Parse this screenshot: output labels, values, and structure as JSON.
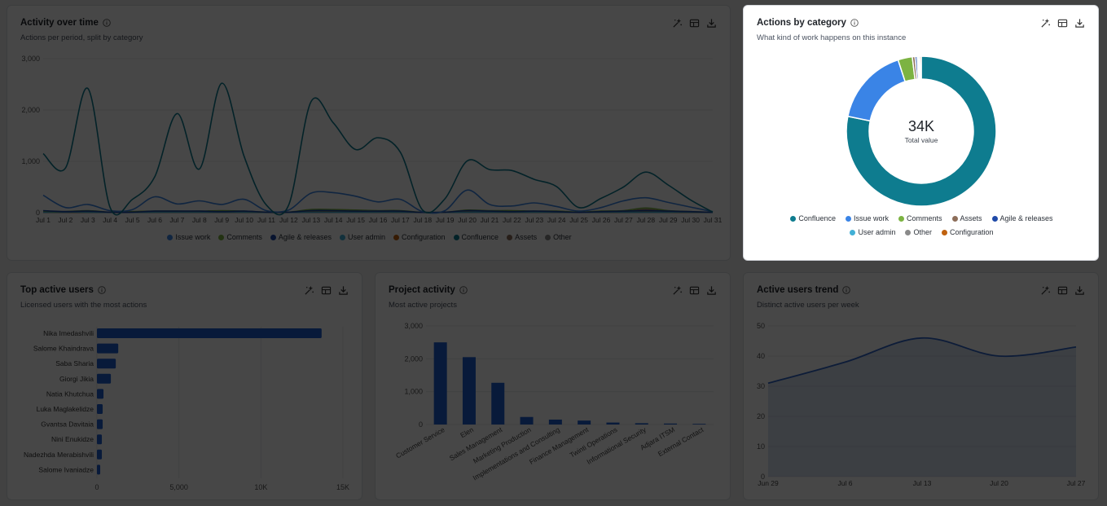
{
  "colors": {
    "confluence": "#0e7c8f",
    "issue_work": "#3a84e6",
    "comments": "#7cb342",
    "assets": "#8d6e5a",
    "agile": "#1f4aa8",
    "user_admin": "#42b0d6",
    "other": "#8a8a8a",
    "configuration": "#c0620f",
    "bar": "#1f5fd1"
  },
  "activity": {
    "title": "Activity over time",
    "subtitle": "Actions per period, split by category",
    "legend": [
      {
        "label": "Issue work",
        "color": "#3a84e6"
      },
      {
        "label": "Comments",
        "color": "#7cb342"
      },
      {
        "label": "Agile & releases",
        "color": "#1f4aa8"
      },
      {
        "label": "User admin",
        "color": "#42b0d6"
      },
      {
        "label": "Configuration",
        "color": "#c0620f"
      },
      {
        "label": "Confluence",
        "color": "#0e7c8f"
      },
      {
        "label": "Assets",
        "color": "#8d6e5a"
      },
      {
        "label": "Other",
        "color": "#8a8a8a"
      }
    ]
  },
  "category": {
    "title": "Actions by category",
    "subtitle": "What kind of work happens on this instance",
    "center_value": "34K",
    "center_label": "Total value",
    "legend": [
      {
        "label": "Confluence",
        "color": "#0e7c8f"
      },
      {
        "label": "Issue work",
        "color": "#3a84e6"
      },
      {
        "label": "Comments",
        "color": "#7cb342"
      },
      {
        "label": "Assets",
        "color": "#8d6e5a"
      },
      {
        "label": "Agile & releases",
        "color": "#1f4aa8"
      },
      {
        "label": "User admin",
        "color": "#42b0d6"
      },
      {
        "label": "Other",
        "color": "#8a8a8a"
      },
      {
        "label": "Configuration",
        "color": "#c0620f"
      }
    ]
  },
  "users": {
    "title": "Top active users",
    "subtitle": "Licensed users with the most actions"
  },
  "projects": {
    "title": "Project activity",
    "subtitle": "Most active projects"
  },
  "trend": {
    "title": "Active users trend",
    "subtitle": "Distinct active users per week"
  },
  "chart_data": [
    {
      "type": "line",
      "ylim": [
        0,
        3000
      ],
      "yticks": [
        "0",
        "1,000",
        "2,000",
        "3,000"
      ],
      "x": [
        "Jul 1",
        "Jul 2",
        "Jul 3",
        "Jul 4",
        "Jul 5",
        "Jul 6",
        "Jul 7",
        "Jul 8",
        "Jul 9",
        "Jul 10",
        "Jul 11",
        "Jul 12",
        "Jul 13",
        "Jul 14",
        "Jul 15",
        "Jul 16",
        "Jul 17",
        "Jul 18",
        "Jul 19",
        "Jul 20",
        "Jul 21",
        "Jul 22",
        "Jul 23",
        "Jul 24",
        "Jul 25",
        "Jul 26",
        "Jul 27",
        "Jul 28",
        "Jul 29",
        "Jul 30",
        "Jul 31"
      ],
      "grid": true,
      "legend_position": "bottom",
      "series": [
        {
          "name": "Confluence",
          "color": "#0e7c8f",
          "values": [
            1150,
            870,
            2420,
            100,
            260,
            700,
            1930,
            850,
            2520,
            1100,
            150,
            150,
            2160,
            1750,
            1230,
            1460,
            1180,
            50,
            270,
            1010,
            840,
            820,
            650,
            510,
            100,
            280,
            500,
            790,
            540,
            250,
            10
          ]
        },
        {
          "name": "Issue work",
          "color": "#3a84e6",
          "values": [
            340,
            100,
            160,
            40,
            60,
            310,
            170,
            230,
            160,
            260,
            40,
            50,
            380,
            390,
            320,
            210,
            260,
            20,
            40,
            440,
            160,
            130,
            190,
            120,
            30,
            100,
            230,
            290,
            200,
            110,
            20
          ]
        },
        {
          "name": "Agile & releases",
          "color": "#1f4aa8",
          "values": [
            40,
            20,
            30,
            10,
            10,
            30,
            30,
            30,
            20,
            30,
            10,
            10,
            40,
            40,
            30,
            30,
            30,
            5,
            10,
            40,
            30,
            20,
            30,
            20,
            5,
            20,
            30,
            40,
            30,
            20,
            5
          ]
        },
        {
          "name": "Comments",
          "color": "#7cb342",
          "values": [
            30,
            20,
            40,
            10,
            20,
            30,
            30,
            30,
            40,
            30,
            10,
            10,
            60,
            60,
            50,
            40,
            40,
            5,
            10,
            50,
            40,
            40,
            30,
            30,
            10,
            30,
            40,
            90,
            40,
            20,
            5
          ]
        },
        {
          "name": "User admin",
          "color": "#42b0d6",
          "values": [
            10,
            10,
            10,
            5,
            5,
            10,
            10,
            10,
            10,
            10,
            5,
            5,
            10,
            10,
            10,
            10,
            10,
            5,
            5,
            10,
            10,
            10,
            10,
            10,
            5,
            10,
            10,
            10,
            10,
            10,
            5
          ]
        },
        {
          "name": "Configuration",
          "color": "#c0620f",
          "values": [
            10,
            5,
            10,
            5,
            5,
            10,
            10,
            10,
            10,
            10,
            5,
            5,
            20,
            20,
            15,
            10,
            10,
            5,
            5,
            15,
            10,
            10,
            10,
            10,
            5,
            10,
            10,
            20,
            10,
            5,
            5
          ]
        },
        {
          "name": "Assets",
          "color": "#8d6e5a",
          "values": [
            20,
            10,
            20,
            5,
            5,
            20,
            20,
            20,
            20,
            20,
            5,
            5,
            30,
            30,
            20,
            20,
            20,
            5,
            5,
            20,
            20,
            20,
            20,
            10,
            5,
            20,
            20,
            60,
            20,
            10,
            5
          ]
        },
        {
          "name": "Other",
          "color": "#8a8a8a",
          "values": [
            5,
            5,
            5,
            5,
            5,
            5,
            5,
            5,
            5,
            5,
            5,
            5,
            5,
            5,
            5,
            5,
            5,
            5,
            5,
            5,
            5,
            5,
            5,
            5,
            5,
            5,
            5,
            5,
            5,
            5,
            5
          ]
        }
      ]
    },
    {
      "type": "pie",
      "donut": true,
      "labels": [
        "Confluence",
        "Issue work",
        "Comments",
        "Assets",
        "Agile & releases",
        "User admin",
        "Other",
        "Configuration"
      ],
      "values": [
        26500,
        5700,
        1050,
        200,
        150,
        100,
        100,
        100
      ],
      "colors": [
        "#0e7c8f",
        "#3a84e6",
        "#7cb342",
        "#8d6e5a",
        "#1f4aa8",
        "#42b0d6",
        "#8a8a8a",
        "#c0620f"
      ]
    },
    {
      "type": "bar",
      "orientation": "horizontal",
      "categories": [
        "Nika Imedashvili",
        "Salome Khaindrava",
        "Saba Sharia",
        "Giorgi Jikia",
        "Natia Khutchua",
        "Luka Maglakelidze",
        "Gvantsa Davitaia",
        "Nini Enukidze",
        "Nadezhda Merabishvili",
        "Salome Ivaniadze"
      ],
      "values": [
        13700,
        1300,
        1150,
        850,
        400,
        350,
        350,
        300,
        300,
        200
      ],
      "xlim": [
        0,
        15000
      ],
      "xticks": [
        {
          "v": 0,
          "label": "0"
        },
        {
          "v": 5000,
          "label": "5,000"
        },
        {
          "v": 10000,
          "label": "10K"
        },
        {
          "v": 15000,
          "label": "15K"
        }
      ]
    },
    {
      "type": "bar",
      "categories": [
        "Customer Service",
        "Elen",
        "Sales Management",
        "Marketing Production",
        "Implementations and Consulting",
        "Finance Management",
        "Twinti Operations",
        "Informational Security",
        "Adjara ITSM",
        "External Contact"
      ],
      "values": [
        2500,
        2050,
        1270,
        230,
        150,
        120,
        60,
        40,
        30,
        20
      ],
      "ylim": [
        0,
        3000
      ],
      "yticks": [
        {
          "v": 0,
          "label": "0"
        },
        {
          "v": 1000,
          "label": "1,000"
        },
        {
          "v": 2000,
          "label": "2,000"
        },
        {
          "v": 3000,
          "label": "3,000"
        }
      ]
    },
    {
      "type": "area",
      "x_labels": [
        "Jun 29",
        "Jul 6",
        "Jul 13",
        "Jul 20",
        "Jul 27"
      ],
      "values": [
        31,
        38,
        46,
        40,
        43
      ],
      "ylim": [
        0,
        50
      ],
      "yticks": [
        "0",
        "10",
        "20",
        "30",
        "40",
        "50"
      ]
    }
  ]
}
